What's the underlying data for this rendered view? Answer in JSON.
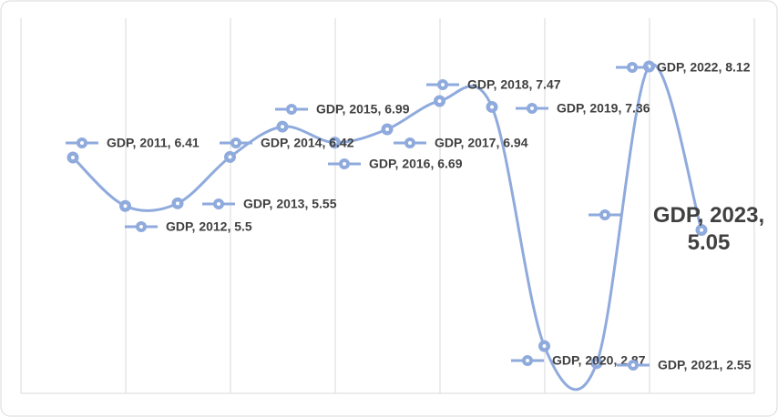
{
  "chart_data": {
    "type": "line",
    "color": "#8faadc",
    "values": [
      6.41,
      5.5,
      5.55,
      6.42,
      6.99,
      6.69,
      6.94,
      7.47,
      7.36,
      2.87,
      2.55,
      8.12,
      5.05
    ],
    "value_labels": [
      "GDP, 2011, 6.41",
      "GDP, 2012, 5.5",
      "GDP, 2013, 5.55",
      "GDP, 2014, 6.42",
      "GDP, 2015, 6.99",
      "GDP, 2016, 6.69",
      "GDP, 2017, 6.94",
      "GDP, 2018, 7.47",
      "GDP, 2019, 7.36",
      "GDP, 2020, 2.87",
      "GDP, 2021, 2.55",
      "GDP, 2022, 8.12",
      "GDP, 2023, 5.05"
    ],
    "ylim": [
      2,
      9
    ]
  }
}
